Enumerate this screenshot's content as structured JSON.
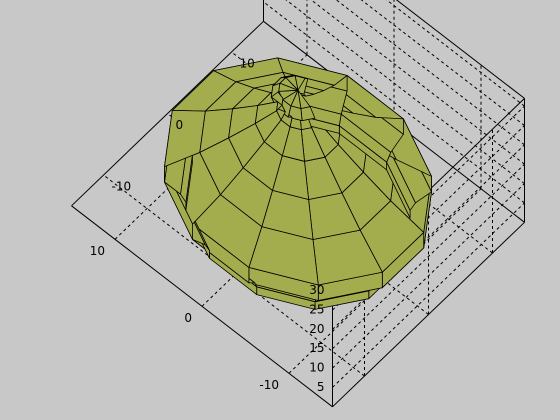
{
  "chart_data": {
    "type": "surface3d",
    "title": "",
    "xlabel": "",
    "ylabel": "",
    "zlabel": "",
    "x_ticks": [
      {
        "value": -10,
        "label": "-10"
      },
      {
        "value": 0,
        "label": "0"
      },
      {
        "value": 10,
        "label": "10"
      }
    ],
    "y_ticks": [
      {
        "value": -10,
        "label": "-10"
      },
      {
        "value": 0,
        "label": "0"
      },
      {
        "value": 10,
        "label": "10"
      }
    ],
    "z_ticks": [
      {
        "value": 5,
        "label": "5"
      },
      {
        "value": 10,
        "label": "10"
      },
      {
        "value": 15,
        "label": "15"
      },
      {
        "value": 20,
        "label": "20"
      },
      {
        "value": 25,
        "label": "25"
      },
      {
        "value": 30,
        "label": "30"
      }
    ],
    "xlim": [
      -15,
      15
    ],
    "ylim": [
      -15,
      15
    ],
    "zlim": [
      0,
      32
    ],
    "grid": true,
    "box": true,
    "surface": {
      "shape": "surface of revolution (dome/spire)",
      "face_color": "#a4ad4d",
      "edge_color": "#000000",
      "segments": 12,
      "profile": [
        {
          "z": 0,
          "r": 10.5
        },
        {
          "z": 2,
          "r": 10.5
        },
        {
          "z": 4,
          "r": 11
        },
        {
          "z": 7,
          "r": 12.5
        },
        {
          "z": 11,
          "r": 12.5
        },
        {
          "z": 15,
          "r": 9.2
        },
        {
          "z": 19,
          "r": 6.5
        },
        {
          "z": 23,
          "r": 4
        },
        {
          "z": 26.5,
          "r": 2
        },
        {
          "z": 28,
          "r": 1.5
        },
        {
          "z": 30,
          "r": 2.5
        },
        {
          "z": 31.5,
          "r": 1.8
        },
        {
          "z": 32,
          "r": 0
        }
      ]
    }
  },
  "colors": {
    "background": "#c8c8c8",
    "axes_face": "#c8c8c8",
    "grid": "#000000",
    "surface": "#a4ad4d"
  }
}
